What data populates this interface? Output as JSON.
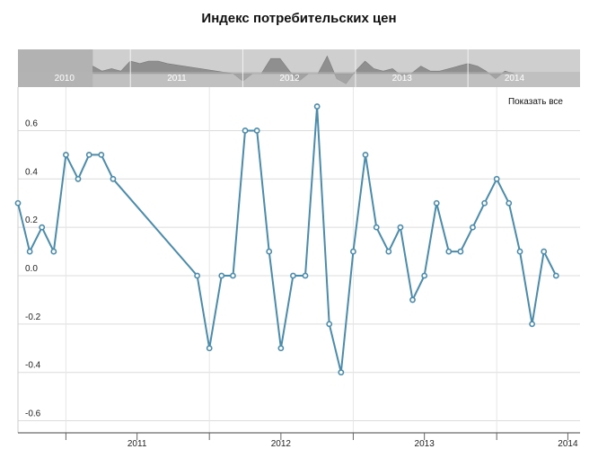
{
  "chart_data": {
    "type": "line",
    "title": "Индекс потребительских цен",
    "xlabel": "",
    "ylabel": "",
    "ylim": [
      -0.65,
      0.78
    ],
    "y_ticks": [
      0.6,
      0.4,
      0.2,
      0.0,
      -0.2,
      -0.4,
      -0.6
    ],
    "y_tick_labels": [
      "0.6",
      "0.4",
      "0.2",
      "0.0",
      "-0.2",
      "-0.4",
      "-0.6"
    ],
    "x_tick_labels": [
      "2011",
      "2012",
      "2013",
      "2014"
    ],
    "x_tick_dates": [
      "2011-01-01",
      "2012-01-01",
      "2013-01-01",
      "2014-01-01"
    ],
    "x_range": [
      "2010-09-01",
      "2014-08-01"
    ],
    "grid": true,
    "series": [
      {
        "color": "#4b8bab",
        "points": [
          {
            "x": "2010-09-01",
            "y": 0.3
          },
          {
            "x": "2010-10-01",
            "y": 0.1
          },
          {
            "x": "2010-11-01",
            "y": 0.2
          },
          {
            "x": "2010-12-01",
            "y": 0.1
          },
          {
            "x": "2011-01-01",
            "y": 0.5
          },
          {
            "x": "2011-02-01",
            "y": 0.4
          },
          {
            "x": "2011-03-01",
            "y": 0.5
          },
          {
            "x": "2011-04-01",
            "y": 0.5
          },
          {
            "x": "2011-05-01",
            "y": 0.4
          },
          {
            "x": "2011-12-01",
            "y": 0.0
          },
          {
            "x": "2012-01-01",
            "y": -0.3
          },
          {
            "x": "2012-02-01",
            "y": 0.0
          },
          {
            "x": "2012-03-01",
            "y": 0.0
          },
          {
            "x": "2012-04-01",
            "y": 0.6
          },
          {
            "x": "2012-05-01",
            "y": 0.6
          },
          {
            "x": "2012-06-01",
            "y": 0.1
          },
          {
            "x": "2012-07-01",
            "y": -0.3
          },
          {
            "x": "2012-08-01",
            "y": 0.0
          },
          {
            "x": "2012-09-01",
            "y": 0.0
          },
          {
            "x": "2012-10-01",
            "y": 0.7
          },
          {
            "x": "2012-11-01",
            "y": -0.2
          },
          {
            "x": "2012-12-01",
            "y": -0.4
          },
          {
            "x": "2013-01-01",
            "y": 0.1
          },
          {
            "x": "2013-02-01",
            "y": 0.5
          },
          {
            "x": "2013-03-01",
            "y": 0.2
          },
          {
            "x": "2013-04-01",
            "y": 0.1
          },
          {
            "x": "2013-05-01",
            "y": 0.2
          },
          {
            "x": "2013-06-01",
            "y": -0.1
          },
          {
            "x": "2013-07-01",
            "y": 0.0
          },
          {
            "x": "2013-08-01",
            "y": 0.3
          },
          {
            "x": "2013-09-01",
            "y": 0.1
          },
          {
            "x": "2013-10-01",
            "y": 0.1
          },
          {
            "x": "2013-11-01",
            "y": 0.2
          },
          {
            "x": "2013-12-01",
            "y": 0.3
          },
          {
            "x": "2014-01-01",
            "y": 0.4
          },
          {
            "x": "2014-02-01",
            "y": 0.3
          },
          {
            "x": "2014-03-01",
            "y": 0.1
          },
          {
            "x": "2014-04-01",
            "y": -0.2
          },
          {
            "x": "2014-05-01",
            "y": 0.1
          },
          {
            "x": "2014-06-01",
            "y": 0.0
          }
        ]
      }
    ]
  },
  "navigator": {
    "year_labels": [
      "2010",
      "2011",
      "2012",
      "2013",
      "2014"
    ],
    "label_dates": [
      "2010-06-01",
      "2011-06-01",
      "2012-06-01",
      "2013-06-01",
      "2014-06-01"
    ],
    "range": [
      "2010-01-01",
      "2014-12-31"
    ],
    "selected_range": [
      "2010-01-01",
      "2010-09-01"
    ]
  },
  "controls": {
    "reset_zoom_label": "Показать все"
  }
}
